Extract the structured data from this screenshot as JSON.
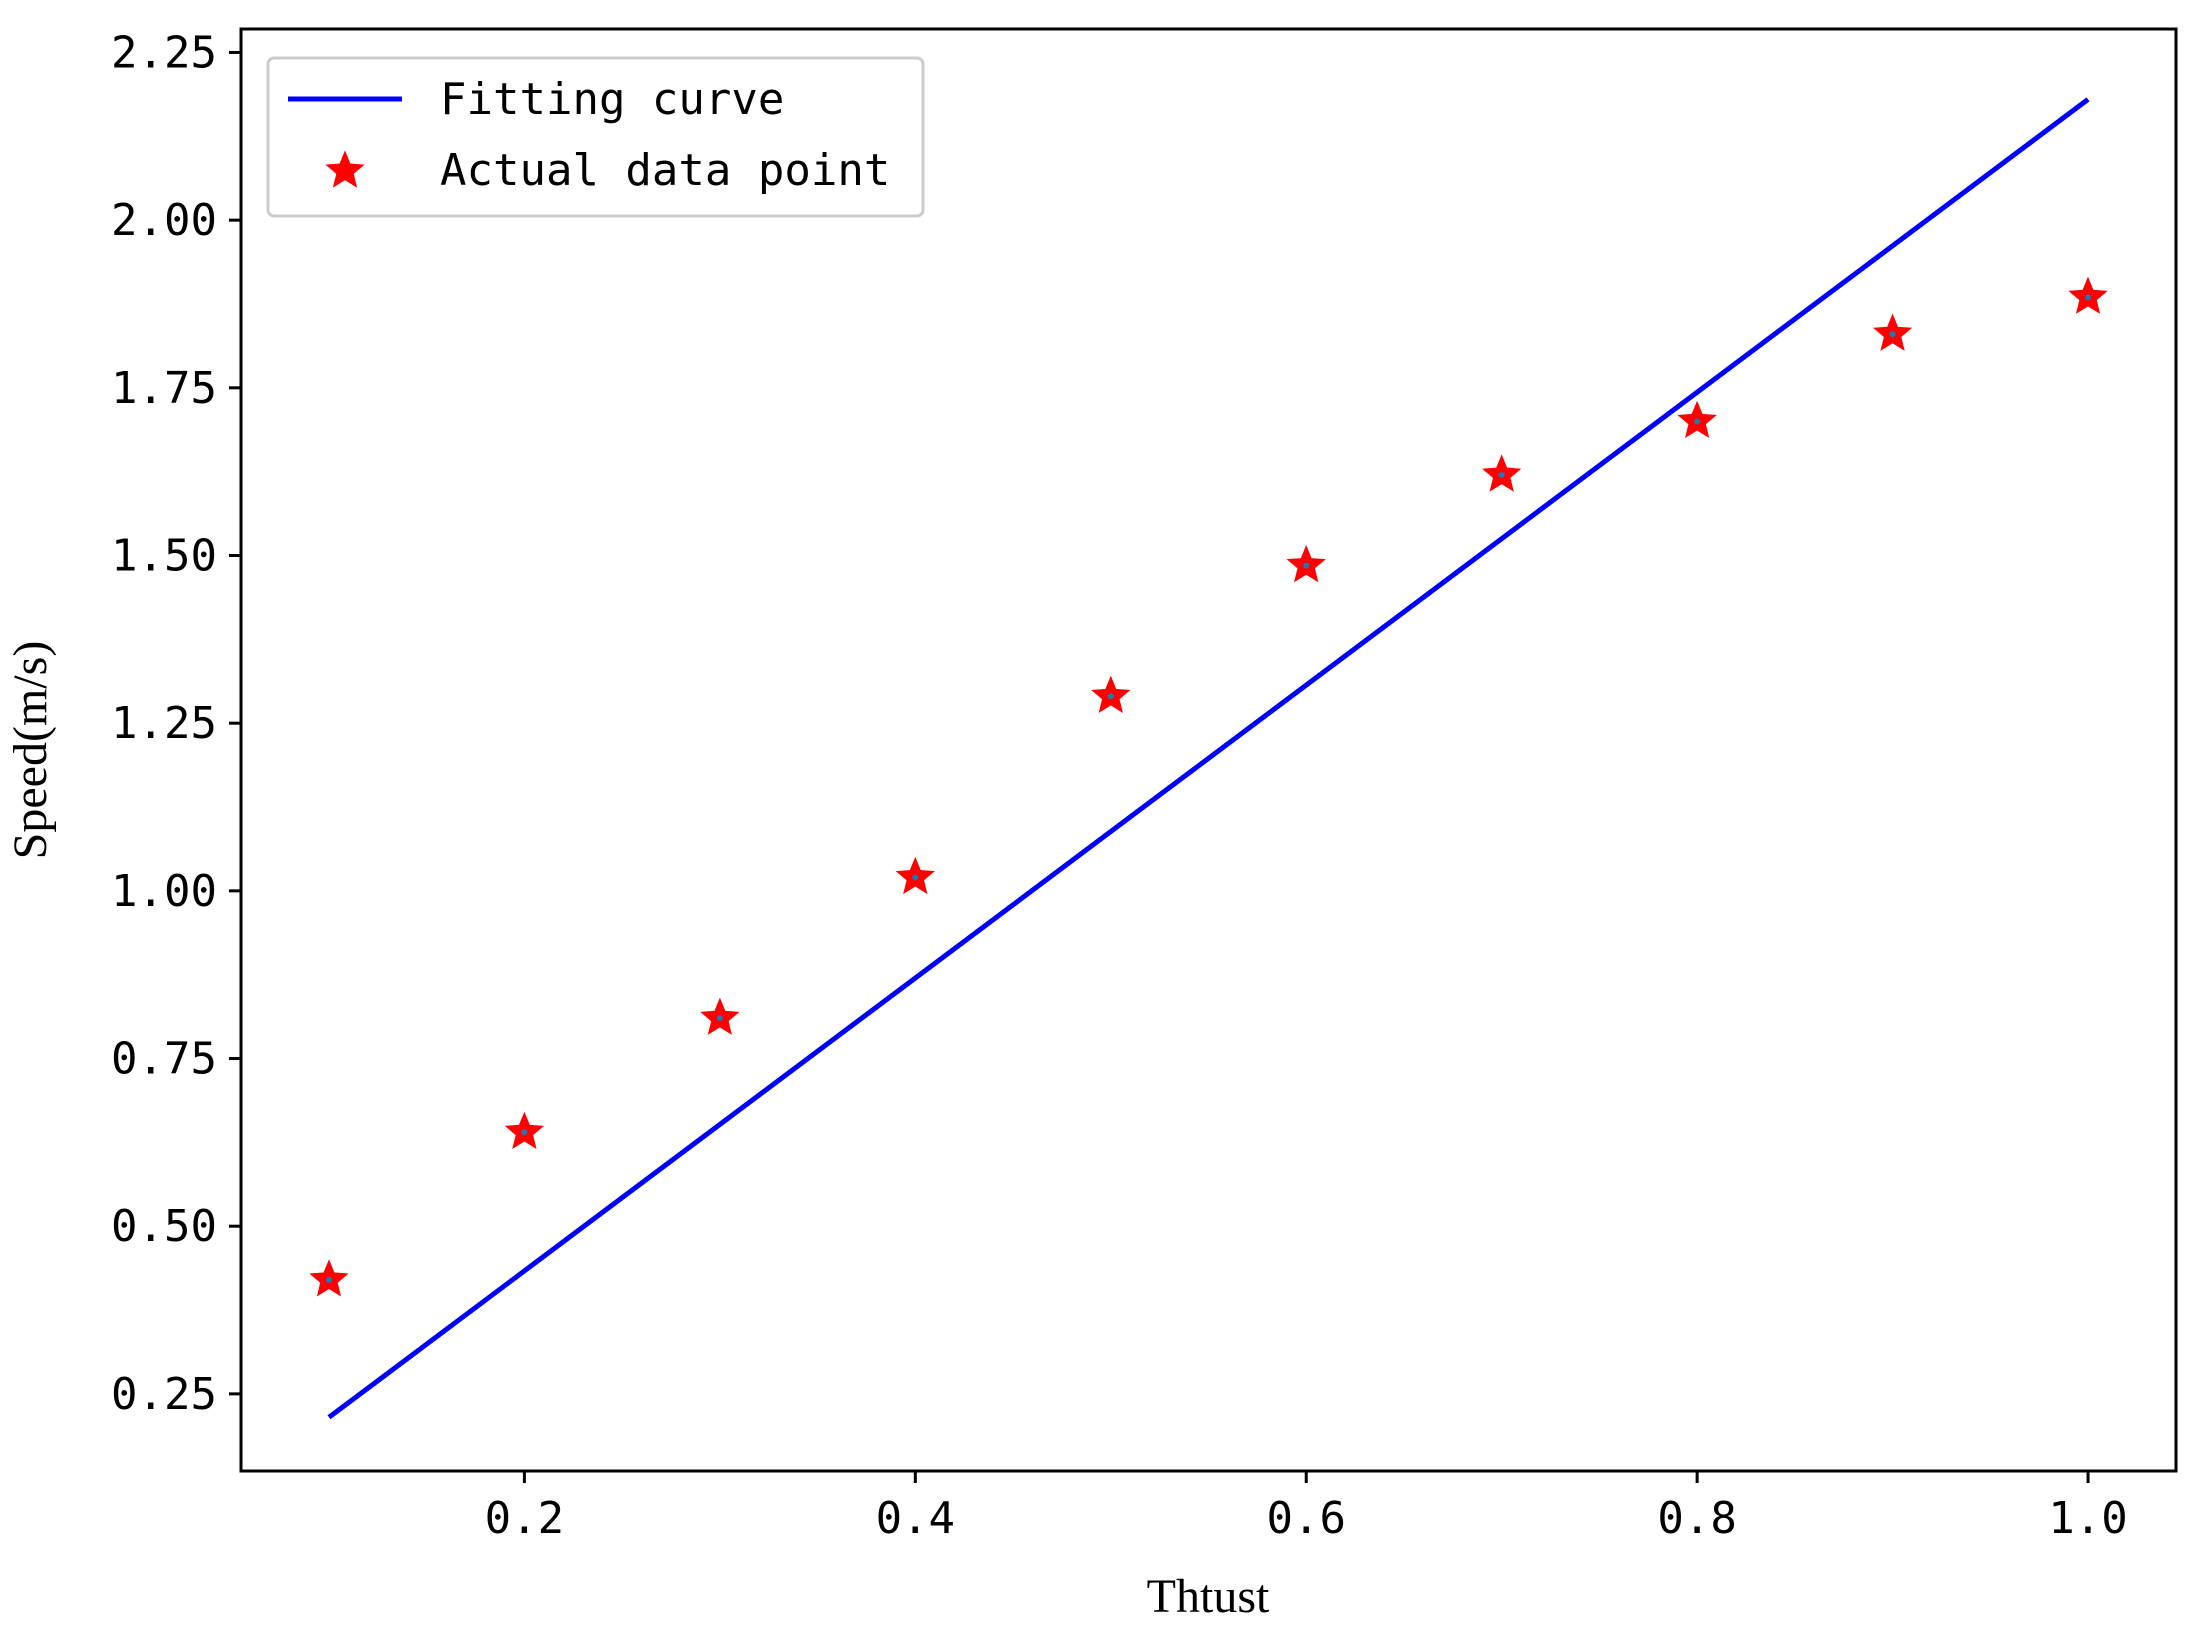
{
  "chart_data": {
    "type": "line",
    "xlabel": "Thtust",
    "ylabel": "Speed(m/s)",
    "xlim": [
      0.055,
      1.045
    ],
    "ylim": [
      0.135,
      2.285
    ],
    "xticks": [
      0.2,
      0.4,
      0.6,
      0.8,
      1.0
    ],
    "xtick_labels": [
      "0.2",
      "0.4",
      "0.6",
      "0.8",
      "1.0"
    ],
    "yticks": [
      0.25,
      0.5,
      0.75,
      1.0,
      1.25,
      1.5,
      1.75,
      2.0,
      2.25
    ],
    "ytick_labels": [
      "0.25",
      "0.50",
      "0.75",
      "1.00",
      "1.25",
      "1.50",
      "1.75",
      "2.00",
      "2.25"
    ],
    "grid": false,
    "legend_position": "top-left",
    "series": [
      {
        "name": "Fitting curve",
        "kind": "line",
        "color": "#0000ff",
        "x": [
          0.1,
          1.0
        ],
        "y": [
          0.215,
          2.18
        ]
      },
      {
        "name": "Actual data point",
        "kind": "scatter",
        "marker": "star",
        "color": "#ff0000",
        "edge_color": "#ff0000",
        "center_color": "#1f77b4",
        "x": [
          0.1,
          0.2,
          0.3,
          0.4,
          0.5,
          0.6,
          0.7,
          0.8,
          0.9,
          1.0
        ],
        "y": [
          0.42,
          0.64,
          0.81,
          1.02,
          1.29,
          1.485,
          1.62,
          1.7,
          1.83,
          1.885
        ]
      }
    ]
  }
}
